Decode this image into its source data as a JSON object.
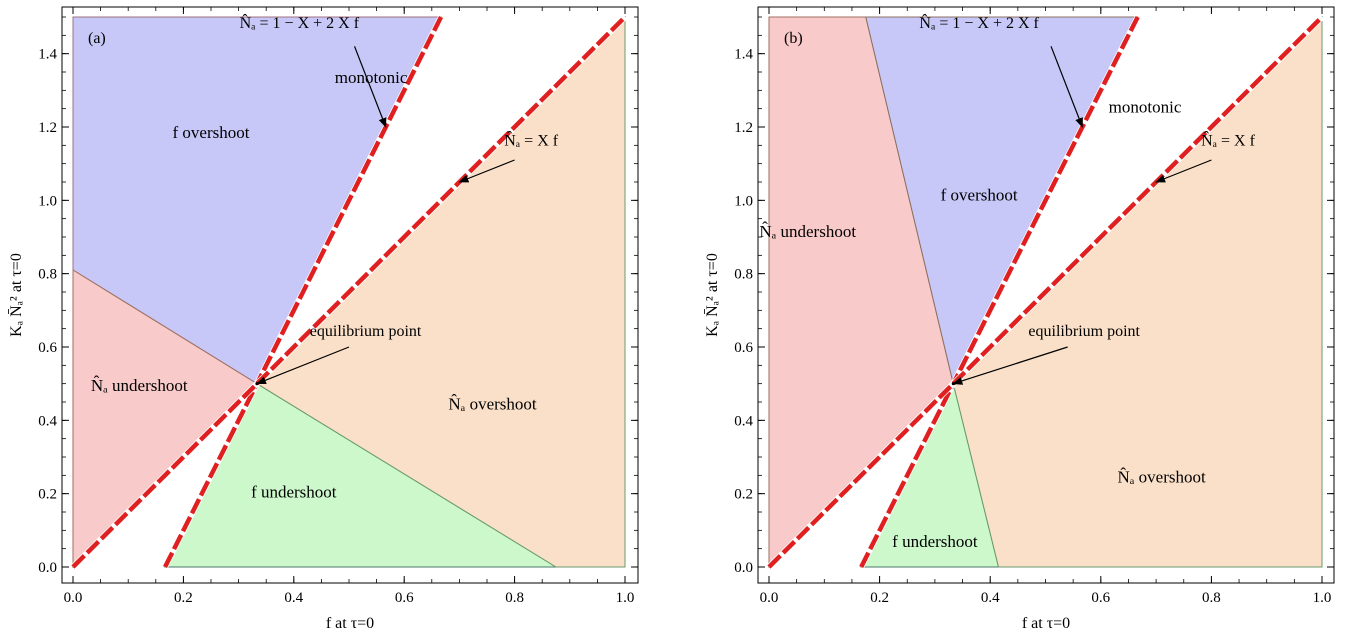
{
  "chart_data": [
    {
      "type": "region-plot",
      "panel_label": "(a)",
      "xlabel": "f at τ=0",
      "ylabel": "Kₐ N̄ₐ² at τ=0",
      "xlim": [
        0,
        1
      ],
      "ylim": [
        0,
        1.5
      ],
      "xticks": [
        0.0,
        0.2,
        0.4,
        0.6,
        0.8,
        1.0
      ],
      "xtick_labels": [
        "0.0",
        "0.2",
        "0.4",
        "0.6",
        "0.8",
        "1.0"
      ],
      "yticks": [
        0.0,
        0.2,
        0.4,
        0.6,
        0.8,
        1.0,
        1.2,
        1.4
      ],
      "ytick_labels": [
        "0.0",
        "0.2",
        "0.4",
        "0.6",
        "0.8",
        "1.0",
        "1.2",
        "1.4"
      ],
      "equilibrium": [
        0.3333,
        0.5
      ],
      "regions": [
        {
          "name": "f overshoot",
          "label": "f overshoot",
          "color": "#c8c8f8",
          "edge": "#a07080",
          "polygon": [
            [
              0,
              0.81
            ],
            [
              0,
              1.5
            ],
            [
              0.6667,
              1.5
            ],
            [
              0.3333,
              0.5
            ]
          ],
          "label_pos": [
            0.25,
            1.17
          ]
        },
        {
          "name": "Na undershoot",
          "label": "N̂ₐ undershoot",
          "color": "#f8caca",
          "edge": "#a07060",
          "polygon": [
            [
              0,
              0
            ],
            [
              0,
              0.81
            ],
            [
              0.3333,
              0.5
            ]
          ],
          "label_pos": [
            0.12,
            0.48
          ]
        },
        {
          "name": "f undershoot",
          "label": "f undershoot",
          "color": "#ccf8cc",
          "edge": "#4a7a6a",
          "polygon": [
            [
              0.1667,
              0
            ],
            [
              0.3333,
              0.5
            ],
            [
              0.875,
              0
            ]
          ],
          "label_pos": [
            0.4,
            0.19
          ]
        },
        {
          "name": "Na overshoot",
          "label": "N̂ₐ overshoot",
          "color": "#fae0c8",
          "edge": "#6a9a6a",
          "polygon": [
            [
              0.3333,
              0.5
            ],
            [
              1.0,
              1.5
            ],
            [
              1.0,
              0
            ],
            [
              0.875,
              0
            ]
          ],
          "label_pos": [
            0.76,
            0.43
          ]
        }
      ],
      "monotonic_label": {
        "text": "monotonic",
        "pos": [
          0.54,
          1.32
        ]
      },
      "lines": [
        {
          "label": "N̂ₐ = 1 − X + 2 X f",
          "from": [
            0.1667,
            0
          ],
          "to": [
            0.6667,
            1.5
          ],
          "color": "#e02020"
        },
        {
          "label": "N̂ₐ = X f",
          "from": [
            0,
            0
          ],
          "to": [
            1.0,
            1.5
          ],
          "color": "#e02020"
        }
      ],
      "annotations": [
        {
          "text": "N̂ₐ = 1 − X + 2 X f",
          "text_pos": [
            0.41,
            1.47
          ],
          "arrow_from": [
            0.51,
            1.42
          ],
          "arrow_to": [
            0.5667,
            1.2
          ]
        },
        {
          "text": "N̂ₐ = X f",
          "text_pos": [
            0.83,
            1.15
          ],
          "arrow_from": [
            0.8,
            1.11
          ],
          "arrow_to": [
            0.7,
            1.05
          ]
        },
        {
          "text": "equilibrium point",
          "text_pos": [
            0.53,
            0.63
          ],
          "arrow_from": [
            0.5,
            0.6
          ],
          "arrow_to": [
            0.3333,
            0.5
          ]
        }
      ]
    },
    {
      "type": "region-plot",
      "panel_label": "(b)",
      "xlabel": "f at τ=0",
      "ylabel": "Kₐ N̄ₐ² at τ=0",
      "xlim": [
        0,
        1
      ],
      "ylim": [
        0,
        1.5
      ],
      "xticks": [
        0.0,
        0.2,
        0.4,
        0.6,
        0.8,
        1.0
      ],
      "xtick_labels": [
        "0.0",
        "0.2",
        "0.4",
        "0.6",
        "0.8",
        "1.0"
      ],
      "yticks": [
        0.0,
        0.2,
        0.4,
        0.6,
        0.8,
        1.0,
        1.2,
        1.4
      ],
      "ytick_labels": [
        "0.0",
        "0.2",
        "0.4",
        "0.6",
        "0.8",
        "1.0",
        "1.2",
        "1.4"
      ],
      "equilibrium": [
        0.3333,
        0.5
      ],
      "regions": [
        {
          "name": "Na undershoot",
          "label": "N̂ₐ undershoot",
          "color": "#f8caca",
          "edge": "#a07060",
          "polygon": [
            [
              0,
              0
            ],
            [
              0,
              1.5
            ],
            [
              0.175,
              1.5
            ],
            [
              0.3333,
              0.5
            ]
          ],
          "label_pos": [
            0.07,
            0.9
          ]
        },
        {
          "name": "f overshoot",
          "label": "f overshoot",
          "color": "#c8c8f8",
          "edge": "#8a7060",
          "polygon": [
            [
              0.175,
              1.5
            ],
            [
              0.6667,
              1.5
            ],
            [
              0.3333,
              0.5
            ]
          ],
          "label_pos": [
            0.38,
            1.0
          ]
        },
        {
          "name": "f undershoot",
          "label": "f undershoot",
          "color": "#ccf8cc",
          "edge": "#4a7a6a",
          "polygon": [
            [
              0.1667,
              0
            ],
            [
              0.3333,
              0.5
            ],
            [
              0.415,
              0
            ]
          ],
          "label_pos": [
            0.3,
            0.055
          ]
        },
        {
          "name": "Na overshoot",
          "label": "N̂ₐ overshoot",
          "color": "#fae0c8",
          "edge": "#6a9a6a",
          "polygon": [
            [
              0.3333,
              0.5
            ],
            [
              1.0,
              1.5
            ],
            [
              1.0,
              0
            ],
            [
              0.415,
              0
            ]
          ],
          "label_pos": [
            0.71,
            0.23
          ]
        }
      ],
      "monotonic_label": {
        "text": "monotonic",
        "pos": [
          0.68,
          1.24
        ]
      },
      "lines": [
        {
          "label": "N̂ₐ = 1 − X + 2 X f",
          "from": [
            0.1667,
            0
          ],
          "to": [
            0.6667,
            1.5
          ],
          "color": "#e02020"
        },
        {
          "label": "N̂ₐ = X f",
          "from": [
            0,
            0
          ],
          "to": [
            1.0,
            1.5
          ],
          "color": "#e02020"
        }
      ],
      "annotations": [
        {
          "text": "N̂ₐ = 1 − X + 2 X f",
          "text_pos": [
            0.38,
            1.47
          ],
          "arrow_from": [
            0.51,
            1.42
          ],
          "arrow_to": [
            0.5667,
            1.2
          ]
        },
        {
          "text": "N̂ₐ = X f",
          "text_pos": [
            0.83,
            1.15
          ],
          "arrow_from": [
            0.8,
            1.11
          ],
          "arrow_to": [
            0.7,
            1.05
          ]
        },
        {
          "text": "equilibrium point",
          "text_pos": [
            0.57,
            0.63
          ],
          "arrow_from": [
            0.54,
            0.6
          ],
          "arrow_to": [
            0.3333,
            0.5
          ]
        }
      ]
    }
  ]
}
